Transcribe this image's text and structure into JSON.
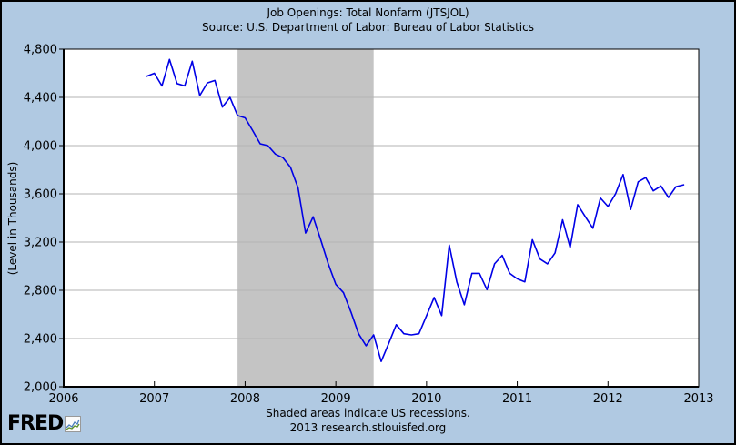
{
  "header": {
    "title": "Job Openings: Total Nonfarm (JTSJOL)",
    "subtitle": "Source: U.S. Department of Labor: Bureau of Labor Statistics"
  },
  "y_axis": {
    "label": "(Level in Thousands)",
    "tick_labels": [
      "2,000",
      "2,400",
      "2,800",
      "3,200",
      "3,600",
      "4,000",
      "4,400",
      "4,800"
    ],
    "tick_values": [
      2000,
      2400,
      2800,
      3200,
      3600,
      4000,
      4400,
      4800
    ]
  },
  "x_axis": {
    "tick_labels": [
      "2006",
      "2007",
      "2008",
      "2009",
      "2010",
      "2011",
      "2012",
      "2013"
    ],
    "tick_values": [
      2006,
      2007,
      2008,
      2009,
      2010,
      2011,
      2012,
      2013
    ]
  },
  "footer": {
    "note": "Shaded areas indicate US recessions.",
    "credit": "2013 research.stlouisfed.org"
  },
  "logo": {
    "text": "FRED",
    "icon": "mini-line-chart-icon"
  },
  "colors": {
    "background": "#b0c9e2",
    "plot_background": "#ffffff",
    "line": "#0000e6",
    "recession_band": "#c4c4c4",
    "grid": "#b3b3b3",
    "frame": "#000000",
    "text": "#000000"
  },
  "chart_data": {
    "type": "line",
    "title": "Job Openings: Total Nonfarm (JTSJOL)",
    "subtitle": "Source: U.S. Department of Labor: Bureau of Labor Statistics",
    "xlabel": "",
    "ylabel": "(Level in Thousands)",
    "xlim": [
      2006,
      2013
    ],
    "ylim": [
      2000,
      4800
    ],
    "y_tick_step": 400,
    "grid": "horizontal-only",
    "legend": "none",
    "frequency": "monthly",
    "recession_band": {
      "start": "2007-12",
      "end": "2009-06",
      "note": "US recession shading"
    },
    "series": [
      {
        "name": "Job Openings: Total Nonfarm",
        "dates": [
          "2006-12",
          "2007-01",
          "2007-02",
          "2007-03",
          "2007-04",
          "2007-05",
          "2007-06",
          "2007-07",
          "2007-08",
          "2007-09",
          "2007-10",
          "2007-11",
          "2007-12",
          "2008-01",
          "2008-02",
          "2008-03",
          "2008-04",
          "2008-05",
          "2008-06",
          "2008-07",
          "2008-08",
          "2008-09",
          "2008-10",
          "2008-11",
          "2008-12",
          "2009-01",
          "2009-02",
          "2009-03",
          "2009-04",
          "2009-05",
          "2009-06",
          "2009-07",
          "2009-08",
          "2009-09",
          "2009-10",
          "2009-11",
          "2009-12",
          "2010-01",
          "2010-02",
          "2010-03",
          "2010-04",
          "2010-05",
          "2010-06",
          "2010-07",
          "2010-08",
          "2010-09",
          "2010-10",
          "2010-11",
          "2010-12",
          "2011-01",
          "2011-02",
          "2011-03",
          "2011-04",
          "2011-05",
          "2011-06",
          "2011-07",
          "2011-08",
          "2011-09",
          "2011-10",
          "2011-11",
          "2011-12",
          "2012-01",
          "2012-02",
          "2012-03",
          "2012-04",
          "2012-05",
          "2012-06",
          "2012-07",
          "2012-08",
          "2012-09",
          "2012-10",
          "2012-11"
        ],
        "values": [
          4575,
          4600,
          4495,
          4715,
          4515,
          4495,
          4700,
          4415,
          4520,
          4540,
          4320,
          4400,
          4250,
          4230,
          4125,
          4015,
          4000,
          3930,
          3900,
          3820,
          3650,
          3275,
          3410,
          3220,
          3020,
          2850,
          2780,
          2620,
          2440,
          2340,
          2430,
          2210,
          2360,
          2515,
          2440,
          2430,
          2440,
          2590,
          2740,
          2590,
          3175,
          2870,
          2680,
          2940,
          2940,
          2805,
          3020,
          3090,
          2940,
          2895,
          2870,
          3220,
          3060,
          3020,
          3110,
          3385,
          3155,
          3510,
          3410,
          3315,
          3565,
          3495,
          3600,
          3760,
          3470,
          3700,
          3735,
          3625,
          3665,
          3570,
          3660,
          3675
        ]
      }
    ]
  }
}
